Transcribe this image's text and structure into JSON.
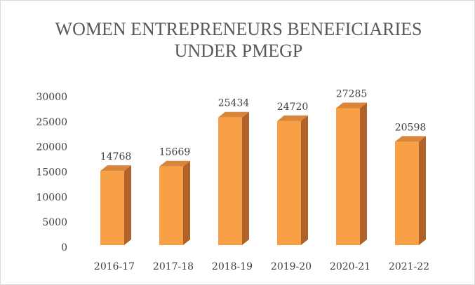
{
  "chart_data": {
    "type": "bar3d",
    "title": "WOMEN ENTREPRENEURS BENEFICIARIES UNDER PMEGP",
    "categories": [
      "2016-17",
      "2017-18",
      "2018-19",
      "2019-20",
      "2020-21",
      "2021-22"
    ],
    "values": [
      14768,
      15669,
      25434,
      24720,
      27285,
      20598
    ],
    "color": "#f7a046",
    "ylim": [
      0,
      30000
    ],
    "yticks": [
      0,
      5000,
      10000,
      15000,
      20000,
      25000,
      30000
    ],
    "grid": false
  }
}
